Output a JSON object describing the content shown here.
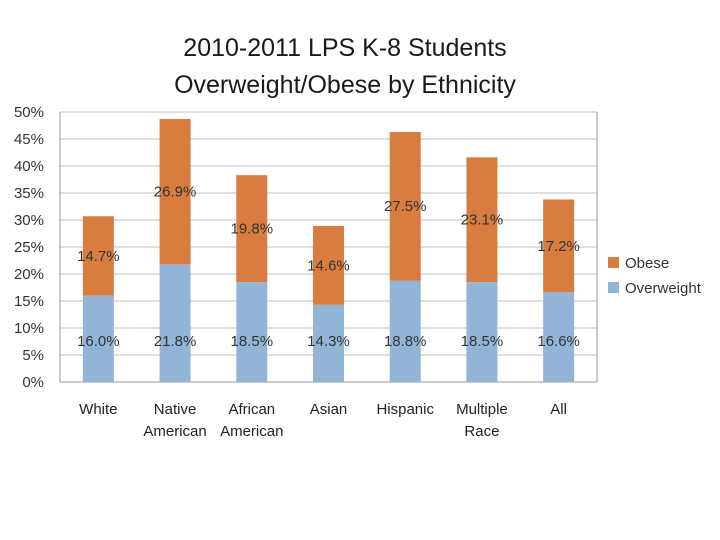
{
  "chart_data": {
    "type": "stacked-bar",
    "title": [
      "2010-2011 LPS K-8 Students",
      "Overweight/Obese by Ethnicity"
    ],
    "categories": [
      [
        "White"
      ],
      [
        "Native",
        "American"
      ],
      [
        "African",
        "American"
      ],
      [
        "Asian"
      ],
      [
        "Hispanic"
      ],
      [
        "Multiple",
        "Race"
      ],
      [
        "All"
      ]
    ],
    "series": [
      {
        "name": "Overweight",
        "color": "#92b4d6",
        "values": [
          16.0,
          21.8,
          18.5,
          14.3,
          18.8,
          18.5,
          16.6
        ],
        "labels": [
          "16.0%",
          "21.8%",
          "18.5%",
          "14.3%",
          "18.8%",
          "18.5%",
          "16.6%"
        ]
      },
      {
        "name": "Obese",
        "color": "#d97c40",
        "values": [
          14.7,
          26.9,
          19.8,
          14.6,
          27.5,
          23.1,
          17.2
        ],
        "labels": [
          "14.7%",
          "26.9%",
          "19.8%",
          "14.6%",
          "27.5%",
          "23.1%",
          "17.2%"
        ]
      }
    ],
    "legend": [
      "Obese",
      "Overweight"
    ],
    "y_ticks": [
      "0%",
      "5%",
      "10%",
      "15%",
      "20%",
      "25%",
      "30%",
      "35%",
      "40%",
      "45%",
      "50%"
    ],
    "ylim": [
      0,
      50
    ],
    "grid": true,
    "legend_position": "right"
  }
}
